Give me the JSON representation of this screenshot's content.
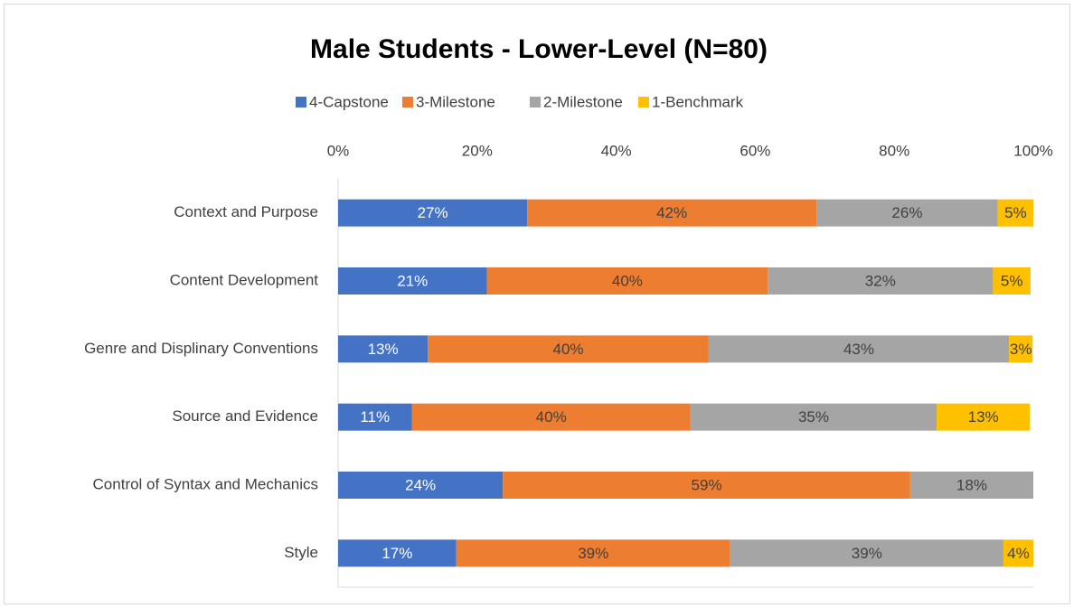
{
  "chart_data": {
    "type": "bar",
    "orientation": "horizontal",
    "stacked": true,
    "title": "Male Students - Lower-Level (N=80)",
    "categories": [
      "Context and Purpose",
      "Content Development",
      "Genre and Displinary Conventions",
      "Source and Evidence",
      "Control of Syntax and Mechanics",
      "Style"
    ],
    "series": [
      {
        "name": "4-Capstone",
        "color": "#4472c4",
        "values": [
          27.2,
          21.4,
          12.9,
          10.6,
          23.7,
          17.0
        ],
        "value_labels": [
          "27%",
          "21%",
          "13%",
          "11%",
          "24%",
          "17%"
        ]
      },
      {
        "name": "3-Milestone",
        "color": "#ed7d31",
        "values": [
          41.6,
          40.4,
          40.4,
          40.1,
          58.6,
          39.4
        ],
        "value_labels": [
          "42%",
          "40%",
          "40%",
          "40%",
          "59%",
          "39%"
        ]
      },
      {
        "name": "2-Milestone",
        "color": "#a5a5a5",
        "values": [
          26.1,
          32.4,
          43.2,
          35.4,
          17.7,
          39.3
        ],
        "value_labels": [
          "26%",
          "32%",
          "43%",
          "35%",
          "18%",
          "39%"
        ]
      },
      {
        "name": "1-Benchmark",
        "color": "#ffc000",
        "values": [
          5.1,
          5.4,
          3.4,
          13.4,
          null,
          4.3
        ],
        "value_labels": [
          "5%",
          "5%",
          "3%",
          "13%",
          null,
          "4%"
        ]
      }
    ],
    "xlim": [
      0,
      100
    ],
    "xticks": [
      {
        "value": 0,
        "label": "0%"
      },
      {
        "value": 20,
        "label": "20%"
      },
      {
        "value": 40,
        "label": "40%"
      },
      {
        "value": 60,
        "label": "60%"
      },
      {
        "value": 80,
        "label": "80%"
      },
      {
        "value": 100,
        "label": "100%"
      }
    ],
    "legend": "top"
  }
}
